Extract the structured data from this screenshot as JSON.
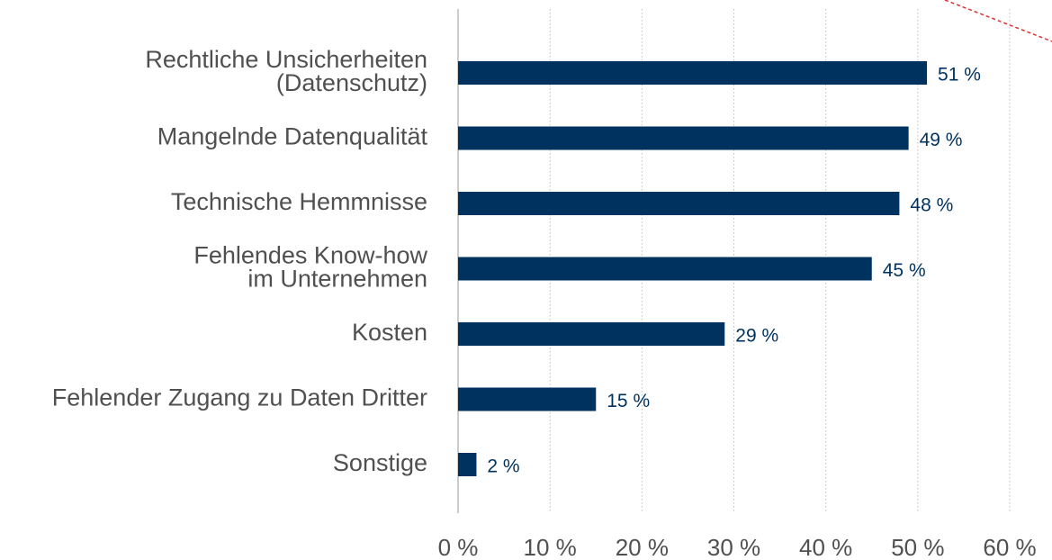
{
  "chart_data": {
    "type": "hbar",
    "categories": [
      "Rechtliche Unsicherheiten\n(Datenschutz)",
      "Mangelnde Datenqualität",
      "Technische Hemmnisse",
      "Fehlendes Know-how\nim Unternehmen",
      "Kosten",
      "Fehlender Zugang zu Daten Dritter",
      "Sonstige"
    ],
    "values": [
      51,
      49,
      48,
      45,
      29,
      15,
      2
    ],
    "value_labels": [
      "51 %",
      "49 %",
      "48 %",
      "45 %",
      "29 %",
      "15 %",
      "2 %"
    ],
    "color": "#00325f",
    "xlim": [
      0,
      60
    ],
    "xticks": [
      {
        "value": 0,
        "label": "0 %"
      },
      {
        "value": 10,
        "label": "10 %"
      },
      {
        "value": 20,
        "label": "20 %"
      },
      {
        "value": 30,
        "label": "30 %"
      },
      {
        "value": 40,
        "label": "40 %"
      },
      {
        "value": 50,
        "label": "50 %"
      },
      {
        "value": 60,
        "label": "60 %"
      }
    ],
    "grid": true
  }
}
